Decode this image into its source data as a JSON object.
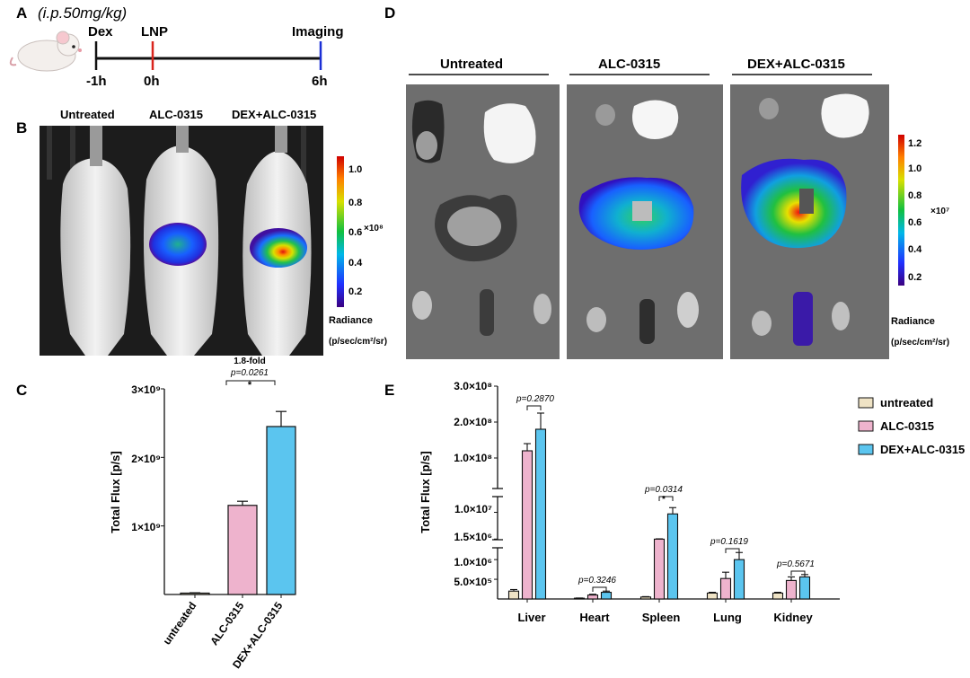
{
  "panels": {
    "A": "A",
    "B": "B",
    "C": "C",
    "D": "D",
    "E": "E"
  },
  "panel_a": {
    "dose": "(i.p.50mg/kg)",
    "events": [
      {
        "top": "Dex",
        "bottom": "-1h",
        "color": "#111111"
      },
      {
        "top": "LNP",
        "bottom": "0h",
        "color": "#d9251d"
      },
      {
        "top": "Imaging",
        "bottom": "6h",
        "color": "#1b2fd6"
      }
    ],
    "mouse_icon": "mouse-icon"
  },
  "panel_b": {
    "groups": [
      "Untreated",
      "ALC-0315",
      "DEX+ALC-0315"
    ],
    "colorbar": {
      "ticks": [
        "1.0",
        "0.8",
        "0.6",
        "0.4",
        "0.2"
      ],
      "multiplier": "×10⁸",
      "label1": "Radiance",
      "label2": "(p/sec/cm²/sr)"
    }
  },
  "panel_d": {
    "groups": [
      "Untreated",
      "ALC-0315",
      "DEX+ALC-0315"
    ],
    "colorbar": {
      "ticks": [
        "1.2",
        "1.0",
        "0.8",
        "0.6",
        "0.4",
        "0.2"
      ],
      "multiplier": "×10⁷",
      "label1": "Radiance",
      "label2": "(p/sec/cm²/sr)"
    }
  },
  "colors": {
    "untreated": "#efe3c5",
    "alc": "#eeb3cd",
    "dex": "#5bc5ef"
  },
  "chart_data": [
    {
      "type": "bar",
      "panel": "C",
      "categories": [
        "untreated",
        "ALC-0315",
        "DEX+ALC-0315"
      ],
      "values": [
        20000000,
        1300000000,
        2450000000
      ],
      "errors": [
        5000000,
        60000000,
        220000000
      ],
      "ylabel": "Total Flux [p/s]",
      "ylim": [
        0,
        3000000000
      ],
      "yticks": [
        "1×10⁹",
        "2×10⁹",
        "3×10⁹"
      ],
      "annotation": {
        "fold": "1.8-fold",
        "p": "p=0.0261",
        "star": "*"
      }
    },
    {
      "type": "bar",
      "panel": "E",
      "categories": [
        "Liver",
        "Heart",
        "Spleen",
        "Lung",
        "Kidney"
      ],
      "ylabel": "Total Flux [p/s]",
      "axis_breaks": true,
      "series": [
        {
          "name": "untreated",
          "values": [
            200000,
            20000,
            50000,
            150000,
            150000
          ],
          "errors": [
            40000,
            5000,
            10000,
            20000,
            20000
          ]
        },
        {
          "name": "ALC-0315",
          "values": [
            120000000,
            100000,
            1480000,
            520000,
            470000
          ],
          "errors": [
            20000000,
            20000,
            100000,
            160000,
            90000
          ],
          "axis_labels": []
        },
        {
          "name": "DEX+ALC-0315",
          "values": [
            180000000,
            170000,
            9500000,
            1000000,
            560000
          ],
          "errors": [
            45000000,
            30000,
            2000000,
            180000,
            60000
          ]
        }
      ],
      "yticks_low": [
        "5.0×10⁵",
        "1.0×10⁶"
      ],
      "yticks_mid": [
        "1.5×10⁶",
        "1.0×10⁷"
      ],
      "yticks_high": [
        "1.0×10⁸",
        "2.0×10⁸",
        "3.0×10⁸"
      ],
      "pvalues": [
        "p=0.2870",
        "p=0.3246",
        "p=0.0314",
        "p=0.1619",
        "p=0.5671"
      ],
      "spleen_star": "*"
    }
  ]
}
